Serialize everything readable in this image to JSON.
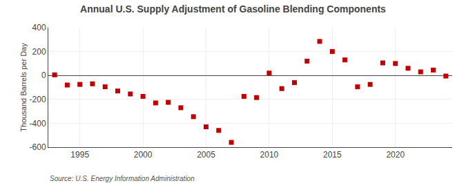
{
  "chart_data": {
    "type": "scatter",
    "title": "Annual U.S. Supply Adjustment of Gasoline Blending Components",
    "ylabel": "Thousand Barrels per Day",
    "annotations": [
      "Source: U.S. Energy Information Administration"
    ],
    "x": [
      1993,
      1994,
      1995,
      1996,
      1997,
      1998,
      1999,
      2000,
      2001,
      2002,
      2003,
      2004,
      2005,
      2006,
      2007,
      2008,
      2009,
      2010,
      2011,
      2012,
      2013,
      2014,
      2015,
      2016,
      2017,
      2018,
      2019,
      2020,
      2021,
      2022,
      2023,
      2024
    ],
    "values": [
      5,
      -80,
      -75,
      -70,
      -95,
      -130,
      -155,
      -175,
      -230,
      -225,
      -270,
      -345,
      -430,
      -460,
      -560,
      -175,
      -185,
      20,
      -110,
      -60,
      120,
      285,
      200,
      130,
      -95,
      -75,
      105,
      100,
      60,
      30,
      45,
      -5
    ],
    "color": "#C00000",
    "marker": "square",
    "ylim": [
      -600,
      400
    ],
    "yticks": [
      -600,
      -400,
      -200,
      0,
      200,
      400
    ],
    "xlim": [
      1992.5,
      2024.5
    ],
    "xticks": [
      1995,
      2000,
      2005,
      2010,
      2015,
      2020
    ],
    "grid": true
  }
}
